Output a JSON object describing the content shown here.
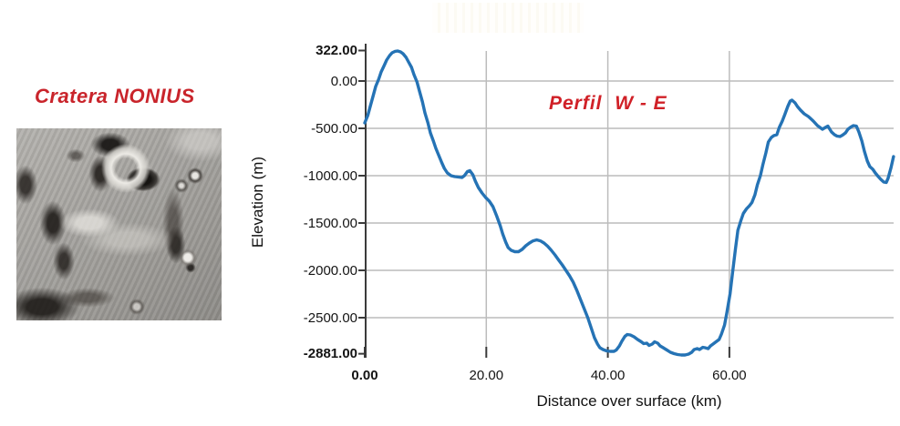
{
  "left_panel": {
    "title": "Cratera NONIUS",
    "title_color": "#c9242b"
  },
  "chart": {
    "title": "Perfil  W - E",
    "title_color": "#d02027"
  },
  "chart_data": {
    "type": "line",
    "title": "Perfil  W - E",
    "line_color": "#2573b5",
    "grid_color": "#bcbcbc",
    "axis_color": "#3b3b3b",
    "ylim": [
      -2881,
      322
    ],
    "xlim_km": [
      0,
      87
    ],
    "legend": "none",
    "y_axis": {
      "label": "Elevation (m)",
      "ticks": [
        {
          "label": "322.00",
          "value": 322,
          "bold": true
        },
        {
          "label": "0.00",
          "value": 0,
          "bold": false
        },
        {
          "label": "-500.00",
          "value": -500,
          "bold": false
        },
        {
          "label": "-1000.00",
          "value": -1000,
          "bold": false
        },
        {
          "label": "-1500.00",
          "value": -1500,
          "bold": false
        },
        {
          "label": "-2000.00",
          "value": -2000,
          "bold": false
        },
        {
          "label": "-2500.00",
          "value": -2500,
          "bold": false
        },
        {
          "label": "-2881.00",
          "value": -2881,
          "bold": true
        }
      ],
      "gridlines": [
        0,
        -500,
        -1000,
        -1500,
        -2000,
        -2500
      ]
    },
    "x_axis": {
      "label": "Distance over surface (km)",
      "ticks": [
        {
          "label": "0.00",
          "value": 0,
          "bold": true
        },
        {
          "label": "20.00",
          "value": 20,
          "bold": false
        },
        {
          "label": "40.00",
          "value": 40,
          "bold": false
        },
        {
          "label": "60.00",
          "value": 60,
          "bold": false
        }
      ],
      "gridlines": [
        20,
        40,
        60
      ]
    },
    "series": [
      {
        "name": "elevation_profile_W_E",
        "points": [
          [
            0.0,
            -442
          ],
          [
            0.5,
            -365
          ],
          [
            0.9,
            -269
          ],
          [
            1.4,
            -154
          ],
          [
            1.8,
            -58
          ],
          [
            2.3,
            19
          ],
          [
            2.7,
            96
          ],
          [
            3.2,
            163
          ],
          [
            3.6,
            221
          ],
          [
            4.1,
            269
          ],
          [
            4.5,
            298
          ],
          [
            5.0,
            313
          ],
          [
            5.4,
            317
          ],
          [
            5.9,
            308
          ],
          [
            6.3,
            288
          ],
          [
            6.8,
            250
          ],
          [
            7.2,
            202
          ],
          [
            7.7,
            144
          ],
          [
            8.1,
            67
          ],
          [
            8.6,
            -10
          ],
          [
            9.0,
            -106
          ],
          [
            9.5,
            -221
          ],
          [
            9.9,
            -337
          ],
          [
            10.4,
            -442
          ],
          [
            10.8,
            -548
          ],
          [
            11.3,
            -635
          ],
          [
            11.7,
            -712
          ],
          [
            12.2,
            -788
          ],
          [
            12.7,
            -865
          ],
          [
            13.1,
            -923
          ],
          [
            13.6,
            -971
          ],
          [
            14.2,
            -1000
          ],
          [
            14.8,
            -1010
          ],
          [
            15.4,
            -1014
          ],
          [
            16.0,
            -1019
          ],
          [
            16.4,
            -1000
          ],
          [
            16.9,
            -957
          ],
          [
            17.3,
            -947
          ],
          [
            17.8,
            -990
          ],
          [
            18.2,
            -1058
          ],
          [
            18.7,
            -1125
          ],
          [
            19.3,
            -1183
          ],
          [
            19.9,
            -1231
          ],
          [
            20.5,
            -1269
          ],
          [
            21.1,
            -1327
          ],
          [
            21.7,
            -1423
          ],
          [
            22.3,
            -1529
          ],
          [
            22.7,
            -1615
          ],
          [
            23.2,
            -1702
          ],
          [
            23.6,
            -1760
          ],
          [
            24.1,
            -1788
          ],
          [
            24.7,
            -1803
          ],
          [
            25.3,
            -1803
          ],
          [
            25.9,
            -1779
          ],
          [
            26.5,
            -1740
          ],
          [
            27.1,
            -1712
          ],
          [
            27.7,
            -1688
          ],
          [
            28.3,
            -1678
          ],
          [
            28.9,
            -1688
          ],
          [
            29.5,
            -1712
          ],
          [
            30.1,
            -1745
          ],
          [
            30.7,
            -1788
          ],
          [
            31.3,
            -1837
          ],
          [
            31.9,
            -1890
          ],
          [
            32.5,
            -1942
          ],
          [
            33.1,
            -2000
          ],
          [
            33.7,
            -2058
          ],
          [
            34.3,
            -2125
          ],
          [
            34.9,
            -2212
          ],
          [
            35.5,
            -2308
          ],
          [
            36.1,
            -2404
          ],
          [
            36.7,
            -2500
          ],
          [
            37.3,
            -2615
          ],
          [
            37.8,
            -2712
          ],
          [
            38.3,
            -2779
          ],
          [
            38.7,
            -2817
          ],
          [
            39.2,
            -2837
          ],
          [
            39.8,
            -2851
          ],
          [
            40.4,
            -2856
          ],
          [
            41.0,
            -2856
          ],
          [
            41.4,
            -2841
          ],
          [
            41.9,
            -2798
          ],
          [
            42.3,
            -2750
          ],
          [
            42.8,
            -2697
          ],
          [
            43.2,
            -2678
          ],
          [
            43.7,
            -2683
          ],
          [
            44.3,
            -2702
          ],
          [
            44.9,
            -2731
          ],
          [
            45.5,
            -2755
          ],
          [
            45.9,
            -2774
          ],
          [
            46.4,
            -2769
          ],
          [
            46.8,
            -2793
          ],
          [
            47.3,
            -2779
          ],
          [
            47.7,
            -2755
          ],
          [
            48.2,
            -2769
          ],
          [
            48.6,
            -2798
          ],
          [
            49.1,
            -2817
          ],
          [
            49.7,
            -2841
          ],
          [
            50.3,
            -2865
          ],
          [
            50.9,
            -2880
          ],
          [
            51.5,
            -2889
          ],
          [
            52.1,
            -2894
          ],
          [
            52.7,
            -2894
          ],
          [
            53.3,
            -2885
          ],
          [
            53.8,
            -2865
          ],
          [
            54.2,
            -2837
          ],
          [
            54.7,
            -2827
          ],
          [
            55.1,
            -2837
          ],
          [
            55.6,
            -2813
          ],
          [
            56.0,
            -2817
          ],
          [
            56.5,
            -2827
          ],
          [
            56.9,
            -2798
          ],
          [
            57.4,
            -2774
          ],
          [
            57.8,
            -2755
          ],
          [
            58.3,
            -2731
          ],
          [
            58.7,
            -2673
          ],
          [
            59.2,
            -2577
          ],
          [
            59.6,
            -2442
          ],
          [
            60.1,
            -2250
          ],
          [
            60.5,
            -2038
          ],
          [
            61.0,
            -1769
          ],
          [
            61.4,
            -1577
          ],
          [
            61.9,
            -1471
          ],
          [
            62.3,
            -1399
          ],
          [
            62.8,
            -1351
          ],
          [
            63.3,
            -1317
          ],
          [
            63.7,
            -1284
          ],
          [
            64.2,
            -1202
          ],
          [
            64.6,
            -1096
          ],
          [
            65.1,
            -1000
          ],
          [
            65.5,
            -885
          ],
          [
            66.0,
            -760
          ],
          [
            66.4,
            -644
          ],
          [
            66.9,
            -596
          ],
          [
            67.3,
            -577
          ],
          [
            67.8,
            -567
          ],
          [
            68.2,
            -490
          ],
          [
            68.7,
            -423
          ],
          [
            69.1,
            -356
          ],
          [
            69.6,
            -269
          ],
          [
            70.0,
            -212
          ],
          [
            70.3,
            -202
          ],
          [
            70.8,
            -231
          ],
          [
            71.2,
            -269
          ],
          [
            71.7,
            -308
          ],
          [
            72.3,
            -346
          ],
          [
            73.0,
            -375
          ],
          [
            73.8,
            -423
          ],
          [
            74.5,
            -471
          ],
          [
            75.3,
            -510
          ],
          [
            75.8,
            -490
          ],
          [
            76.2,
            -476
          ],
          [
            76.8,
            -538
          ],
          [
            77.3,
            -567
          ],
          [
            77.7,
            -582
          ],
          [
            78.2,
            -587
          ],
          [
            78.6,
            -572
          ],
          [
            79.1,
            -548
          ],
          [
            79.5,
            -510
          ],
          [
            80.0,
            -486
          ],
          [
            80.4,
            -471
          ],
          [
            80.9,
            -476
          ],
          [
            81.3,
            -538
          ],
          [
            81.8,
            -635
          ],
          [
            82.2,
            -740
          ],
          [
            82.7,
            -846
          ],
          [
            83.1,
            -904
          ],
          [
            83.6,
            -933
          ],
          [
            84.0,
            -971
          ],
          [
            84.5,
            -1010
          ],
          [
            84.9,
            -1038
          ],
          [
            85.4,
            -1067
          ],
          [
            85.8,
            -1072
          ],
          [
            86.1,
            -1029
          ],
          [
            86.6,
            -913
          ],
          [
            87.0,
            -798
          ]
        ]
      }
    ]
  }
}
